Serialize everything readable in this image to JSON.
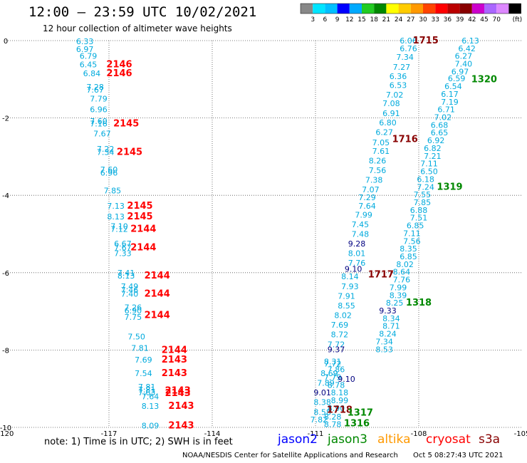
{
  "title": "12:00 – 23:59 UTC 10/02/2021",
  "subtitle": "12 hour collection of altimeter wave heights",
  "colorbar": {
    "unit_label": "(ft)",
    "colors": [
      "#888888",
      "#00e5ff",
      "#00bfff",
      "#0000ff",
      "#00aaff",
      "#22cc22",
      "#008800",
      "#ffff00",
      "#ffcc00",
      "#ff9900",
      "#ff4400",
      "#ff0000",
      "#bb0000",
      "#880000",
      "#cc00cc",
      "#aa66ff",
      "#dd88ff",
      "#000000"
    ],
    "labels": [
      "3",
      "6",
      "9",
      "12",
      "15",
      "18",
      "21",
      "24",
      "27",
      "30",
      "33",
      "36",
      "39",
      "42",
      "45",
      "70"
    ]
  },
  "footer": {
    "note": "note:  1) Time is in UTC;  2) SWH is in feet",
    "credit": "NOAA/NESDIS Center for Satellite Applications and Research",
    "timestamp": "Oct  5 08:27:43 UTC 2021",
    "satellites": [
      {
        "name": "jason2",
        "color": "#0000ff"
      },
      {
        "name": "jason3",
        "color": "#008800"
      },
      {
        "name": "altika",
        "color": "#ff9900"
      },
      {
        "name": "cryosat",
        "color": "#ff0000"
      },
      {
        "name": "s3a",
        "color": "#880000"
      }
    ]
  },
  "chart_data": {
    "type": "scatter",
    "xlim": [
      -120,
      -105
    ],
    "ylim": [
      -10,
      0
    ],
    "x_ticks": [
      "-120",
      "-117",
      "-114",
      "-111",
      "-108",
      "-105"
    ],
    "y_ticks": [
      "0",
      "-2",
      "-4",
      "-6",
      "-8",
      "-10"
    ],
    "grid": true,
    "colors": {
      "cyan": "#00aadd",
      "navy": "#000080",
      "red": "#ff0000",
      "green": "#008800",
      "maroon": "#880000"
    },
    "series": [
      {
        "track": "A",
        "color": "cyan",
        "labels": [
          {
            "x": -117.7,
            "y": -0.02,
            "t": "6.33"
          },
          {
            "x": -117.7,
            "y": -0.22,
            "t": "6.97"
          },
          {
            "x": -117.6,
            "y": -0.4,
            "t": "6.79"
          },
          {
            "x": -117.6,
            "y": -0.62,
            "t": "6.45"
          },
          {
            "x": -117.5,
            "y": -0.85,
            "t": "6.84"
          },
          {
            "x": -117.4,
            "y": -1.2,
            "t": "7.28"
          },
          {
            "x": -117.4,
            "y": -1.27,
            "t": "7.67"
          },
          {
            "x": -117.3,
            "y": -1.5,
            "t": "7.79"
          },
          {
            "x": -117.3,
            "y": -1.78,
            "t": "6.96"
          },
          {
            "x": -117.3,
            "y": -2.08,
            "t": "7.60"
          },
          {
            "x": -117.3,
            "y": -2.15,
            "t": "7.16"
          },
          {
            "x": -117.2,
            "y": -2.4,
            "t": "7.67"
          },
          {
            "x": -117.1,
            "y": -2.8,
            "t": "7.22"
          },
          {
            "x": -117.1,
            "y": -2.88,
            "t": "7.34"
          },
          {
            "x": -117.0,
            "y": -3.33,
            "t": "7.60"
          },
          {
            "x": -117.0,
            "y": -3.42,
            "t": "6.96"
          },
          {
            "x": -116.9,
            "y": -3.88,
            "t": "7.85"
          },
          {
            "x": -116.8,
            "y": -4.27,
            "t": "7.13"
          },
          {
            "x": -116.8,
            "y": -4.55,
            "t": "8.13"
          },
          {
            "x": -116.7,
            "y": -4.8,
            "t": "7.10"
          },
          {
            "x": -116.7,
            "y": -4.87,
            "t": "7.12"
          },
          {
            "x": -116.6,
            "y": -5.25,
            "t": "6.67"
          },
          {
            "x": -116.6,
            "y": -5.35,
            "t": "7.67"
          },
          {
            "x": -116.6,
            "y": -5.5,
            "t": "7.33"
          },
          {
            "x": -116.5,
            "y": -6.0,
            "t": "7.41"
          },
          {
            "x": -116.5,
            "y": -6.08,
            "t": "8.13"
          },
          {
            "x": -116.4,
            "y": -6.35,
            "t": "7.49"
          },
          {
            "x": -116.4,
            "y": -6.45,
            "t": "7.46"
          },
          {
            "x": -116.4,
            "y": -6.55,
            "t": "7.40"
          },
          {
            "x": -116.3,
            "y": -6.9,
            "t": "7.26"
          },
          {
            "x": -116.3,
            "y": -6.98,
            "t": "6.90"
          },
          {
            "x": -116.3,
            "y": -7.15,
            "t": "7.75"
          },
          {
            "x": -116.2,
            "y": -7.65,
            "t": "7.50"
          },
          {
            "x": -116.1,
            "y": -7.95,
            "t": "7.81"
          },
          {
            "x": -116.0,
            "y": -8.25,
            "t": "7.69"
          },
          {
            "x": -116.0,
            "y": -8.6,
            "t": "7.54"
          },
          {
            "x": -115.9,
            "y": -8.95,
            "t": "7.81"
          },
          {
            "x": -115.9,
            "y": -9.02,
            "t": "7.81"
          },
          {
            "x": -115.9,
            "y": -9.1,
            "t": "7.63"
          },
          {
            "x": -115.8,
            "y": -9.2,
            "t": "7.64"
          },
          {
            "x": -115.8,
            "y": -9.45,
            "t": "8.13"
          },
          {
            "x": -115.8,
            "y": -9.95,
            "t": "8.09"
          }
        ]
      },
      {
        "track": "A",
        "color": "red",
        "labels": [
          {
            "x": -116.7,
            "y": -0.62,
            "t": "2146"
          },
          {
            "x": -116.7,
            "y": -0.85,
            "t": "2146"
          },
          {
            "x": -116.5,
            "y": -2.15,
            "t": "2145"
          },
          {
            "x": -116.4,
            "y": -2.88,
            "t": "2145"
          },
          {
            "x": -116.1,
            "y": -4.27,
            "t": "2145"
          },
          {
            "x": -116.1,
            "y": -4.55,
            "t": "2145"
          },
          {
            "x": -116.0,
            "y": -4.87,
            "t": "2144"
          },
          {
            "x": -116.0,
            "y": -5.35,
            "t": "2144"
          },
          {
            "x": -115.6,
            "y": -6.08,
            "t": "2144"
          },
          {
            "x": -115.6,
            "y": -6.55,
            "t": "2144"
          },
          {
            "x": -115.6,
            "y": -7.1,
            "t": "2144"
          },
          {
            "x": -115.1,
            "y": -8.0,
            "t": "2144"
          },
          {
            "x": -115.1,
            "y": -8.25,
            "t": "2143"
          },
          {
            "x": -115.1,
            "y": -8.6,
            "t": "2143"
          },
          {
            "x": -115.0,
            "y": -9.05,
            "t": "2143"
          },
          {
            "x": -115.0,
            "y": -9.12,
            "t": "2143"
          },
          {
            "x": -114.9,
            "y": -9.45,
            "t": "2143"
          },
          {
            "x": -114.9,
            "y": -9.95,
            "t": "2143"
          }
        ]
      },
      {
        "track": "B",
        "color": "cyan",
        "labels": [
          {
            "x": -108.3,
            "y": 0.0,
            "t": "6.06"
          },
          {
            "x": -108.3,
            "y": -0.2,
            "t": "6.76"
          },
          {
            "x": -108.4,
            "y": -0.42,
            "t": "7.34"
          },
          {
            "x": -108.5,
            "y": -0.68,
            "t": "7.27"
          },
          {
            "x": -108.6,
            "y": -0.92,
            "t": "6.36"
          },
          {
            "x": -108.6,
            "y": -1.15,
            "t": "6.53"
          },
          {
            "x": -108.7,
            "y": -1.4,
            "t": "7.02"
          },
          {
            "x": -108.8,
            "y": -1.62,
            "t": "7.08"
          },
          {
            "x": -108.8,
            "y": -1.88,
            "t": "6.91"
          },
          {
            "x": -108.9,
            "y": -2.12,
            "t": "6.80"
          },
          {
            "x": -109.0,
            "y": -2.37,
            "t": "6.27"
          },
          {
            "x": -109.1,
            "y": -2.63,
            "t": "7.05"
          },
          {
            "x": -109.1,
            "y": -2.85,
            "t": "7.61"
          },
          {
            "x": -109.2,
            "y": -3.1,
            "t": "8.26"
          },
          {
            "x": -109.2,
            "y": -3.35,
            "t": "7.56"
          },
          {
            "x": -109.3,
            "y": -3.6,
            "t": "7.38"
          },
          {
            "x": -109.4,
            "y": -3.85,
            "t": "7.07"
          },
          {
            "x": -109.5,
            "y": -4.05,
            "t": "7.29"
          },
          {
            "x": -109.5,
            "y": -4.27,
            "t": "7.64"
          },
          {
            "x": -109.6,
            "y": -4.5,
            "t": "7.99"
          },
          {
            "x": -109.7,
            "y": -4.75,
            "t": "7.45"
          },
          {
            "x": -109.7,
            "y": -5.0,
            "t": "7.48"
          },
          {
            "x": -109.8,
            "y": -5.5,
            "t": "8.01"
          },
          {
            "x": -109.8,
            "y": -5.75,
            "t": "7.76"
          },
          {
            "x": -110.0,
            "y": -6.1,
            "t": "8.14"
          },
          {
            "x": -110.0,
            "y": -6.35,
            "t": "7.93"
          },
          {
            "x": -110.1,
            "y": -6.6,
            "t": "7.91"
          },
          {
            "x": -110.1,
            "y": -6.85,
            "t": "8.55"
          },
          {
            "x": -110.2,
            "y": -7.1,
            "t": "8.02"
          },
          {
            "x": -110.3,
            "y": -7.35,
            "t": "7.69"
          },
          {
            "x": -110.3,
            "y": -7.6,
            "t": "8.72"
          },
          {
            "x": -110.4,
            "y": -7.85,
            "t": "7.72"
          },
          {
            "x": -110.5,
            "y": -8.35,
            "t": "7.72"
          },
          {
            "x": -110.6,
            "y": -8.6,
            "t": "8.69"
          },
          {
            "x": -110.7,
            "y": -8.85,
            "t": "7.89"
          },
          {
            "x": -110.8,
            "y": -9.35,
            "t": "8.38"
          },
          {
            "x": -110.8,
            "y": -9.6,
            "t": "8.58"
          },
          {
            "x": -110.9,
            "y": -9.8,
            "t": "7.82"
          },
          {
            "x": -110.5,
            "y": -8.3,
            "t": "8.31"
          },
          {
            "x": -110.4,
            "y": -8.5,
            "t": "7.86"
          },
          {
            "x": -110.5,
            "y": -8.7,
            "t": "7.79"
          },
          {
            "x": -110.4,
            "y": -8.9,
            "t": "8.78"
          },
          {
            "x": -110.3,
            "y": -9.1,
            "t": "8.18"
          },
          {
            "x": -110.3,
            "y": -9.3,
            "t": "8.99"
          },
          {
            "x": -110.4,
            "y": -9.5,
            "t": "8.90"
          },
          {
            "x": -110.5,
            "y": -9.72,
            "t": "8.28"
          },
          {
            "x": -110.5,
            "y": -9.92,
            "t": "8.78"
          }
        ]
      },
      {
        "track": "B",
        "color": "cyan",
        "labels": [
          {
            "x": -106.5,
            "y": 0.0,
            "t": "6.13"
          },
          {
            "x": -106.6,
            "y": -0.2,
            "t": "6.42"
          },
          {
            "x": -106.7,
            "y": -0.4,
            "t": "6.27"
          },
          {
            "x": -106.7,
            "y": -0.6,
            "t": "7.40"
          },
          {
            "x": -106.8,
            "y": -0.8,
            "t": "6.97"
          },
          {
            "x": -106.9,
            "y": -0.98,
            "t": "6.59"
          },
          {
            "x": -107.0,
            "y": -1.18,
            "t": "6.54"
          },
          {
            "x": -107.1,
            "y": -1.38,
            "t": "6.17"
          },
          {
            "x": -107.1,
            "y": -1.58,
            "t": "7.19"
          },
          {
            "x": -107.2,
            "y": -1.78,
            "t": "6.71"
          },
          {
            "x": -107.3,
            "y": -1.98,
            "t": "7.02"
          },
          {
            "x": -107.4,
            "y": -2.18,
            "t": "6.68"
          },
          {
            "x": -107.4,
            "y": -2.38,
            "t": "6.65"
          },
          {
            "x": -107.5,
            "y": -2.58,
            "t": "6.92"
          },
          {
            "x": -107.6,
            "y": -2.78,
            "t": "6.82"
          },
          {
            "x": -107.6,
            "y": -2.98,
            "t": "7.21"
          },
          {
            "x": -107.7,
            "y": -3.18,
            "t": "7.11"
          },
          {
            "x": -107.7,
            "y": -3.38,
            "t": "6.50"
          },
          {
            "x": -107.8,
            "y": -3.58,
            "t": "6.18"
          },
          {
            "x": -107.8,
            "y": -3.78,
            "t": "7.24"
          },
          {
            "x": -107.9,
            "y": -3.98,
            "t": "7.55"
          },
          {
            "x": -107.9,
            "y": -4.18,
            "t": "7.85"
          },
          {
            "x": -108.0,
            "y": -4.38,
            "t": "6.88"
          },
          {
            "x": -108.0,
            "y": -4.58,
            "t": "7.51"
          },
          {
            "x": -108.1,
            "y": -4.78,
            "t": "6.85"
          },
          {
            "x": -108.2,
            "y": -4.98,
            "t": "7.11"
          },
          {
            "x": -108.2,
            "y": -5.18,
            "t": "7.56"
          },
          {
            "x": -108.3,
            "y": -5.38,
            "t": "8.35"
          },
          {
            "x": -108.3,
            "y": -5.58,
            "t": "6.85"
          },
          {
            "x": -108.4,
            "y": -5.78,
            "t": "8.02"
          },
          {
            "x": -108.5,
            "y": -5.98,
            "t": "8.64"
          },
          {
            "x": -108.5,
            "y": -6.18,
            "t": "7.76"
          },
          {
            "x": -108.6,
            "y": -6.38,
            "t": "7.99"
          },
          {
            "x": -108.6,
            "y": -6.58,
            "t": "8.39"
          },
          {
            "x": -108.7,
            "y": -6.78,
            "t": "8.25"
          },
          {
            "x": -108.8,
            "y": -7.18,
            "t": "8.34"
          },
          {
            "x": -108.8,
            "y": -7.38,
            "t": "8.71"
          },
          {
            "x": -108.9,
            "y": -7.58,
            "t": "8.24"
          },
          {
            "x": -109.0,
            "y": -7.78,
            "t": "7.34"
          },
          {
            "x": -109.0,
            "y": -7.98,
            "t": "8.53"
          }
        ]
      },
      {
        "track": "B",
        "color": "navy",
        "labels": [
          {
            "x": -109.8,
            "y": -5.25,
            "t": "9.28"
          },
          {
            "x": -109.9,
            "y": -5.9,
            "t": "9.10"
          },
          {
            "x": -108.9,
            "y": -6.98,
            "t": "9.33"
          },
          {
            "x": -110.4,
            "y": -7.98,
            "t": "9.37"
          },
          {
            "x": -110.1,
            "y": -8.75,
            "t": "9.10"
          },
          {
            "x": -110.8,
            "y": -9.1,
            "t": "9.01"
          }
        ]
      },
      {
        "track": "B",
        "color": "maroon",
        "labels": [
          {
            "x": -107.8,
            "y": 0.0,
            "t": "1715"
          },
          {
            "x": -108.4,
            "y": -2.55,
            "t": "1716"
          },
          {
            "x": -109.1,
            "y": -6.05,
            "t": "1717"
          },
          {
            "x": -110.3,
            "y": -9.55,
            "t": "1718"
          }
        ]
      },
      {
        "track": "B",
        "color": "green",
        "labels": [
          {
            "x": -106.1,
            "y": -1.0,
            "t": "1320"
          },
          {
            "x": -107.1,
            "y": -3.78,
            "t": "1319"
          },
          {
            "x": -108.0,
            "y": -6.78,
            "t": "1318"
          },
          {
            "x": -109.7,
            "y": -9.62,
            "t": "1317"
          },
          {
            "x": -109.8,
            "y": -9.9,
            "t": "1316"
          }
        ]
      }
    ]
  }
}
